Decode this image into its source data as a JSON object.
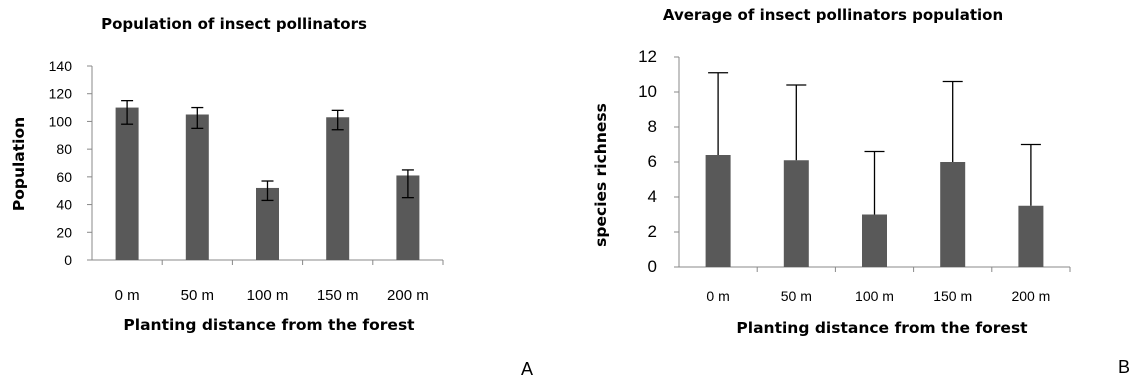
{
  "chart_data": [
    {
      "type": "bar",
      "panel_label": "A",
      "title": "Population of insect pollinators",
      "xlabel": "Planting distance from the forest",
      "ylabel": "Population",
      "categories": [
        "0 m",
        "50 m",
        "100 m",
        "150 m",
        "200 m"
      ],
      "values": [
        110,
        105,
        52,
        103,
        61
      ],
      "error_lower": [
        12,
        10,
        9,
        9,
        16
      ],
      "error_upper": [
        5,
        5,
        5,
        5,
        4
      ],
      "ylim": [
        0,
        140
      ],
      "yticks": [
        0,
        20,
        40,
        60,
        80,
        100,
        120,
        140
      ],
      "bar_color": "#595959",
      "grid": false,
      "legend": "none"
    },
    {
      "type": "bar",
      "panel_label": "B",
      "title": "Average of insect pollinators  population",
      "xlabel": "Planting distance from the forest",
      "ylabel": "species richness",
      "categories": [
        "0 m",
        "50 m",
        "100 m",
        "150 m",
        "200 m"
      ],
      "values": [
        6.4,
        6.1,
        3.0,
        6.0,
        3.5
      ],
      "error_lower": [
        0,
        0,
        0,
        0,
        0
      ],
      "error_upper": [
        4.7,
        4.3,
        3.6,
        4.6,
        3.5
      ],
      "ylim": [
        0,
        12
      ],
      "yticks": [
        0,
        2,
        4,
        6,
        8,
        10,
        12
      ],
      "bar_color": "#595959",
      "grid": false,
      "legend": "none"
    }
  ]
}
